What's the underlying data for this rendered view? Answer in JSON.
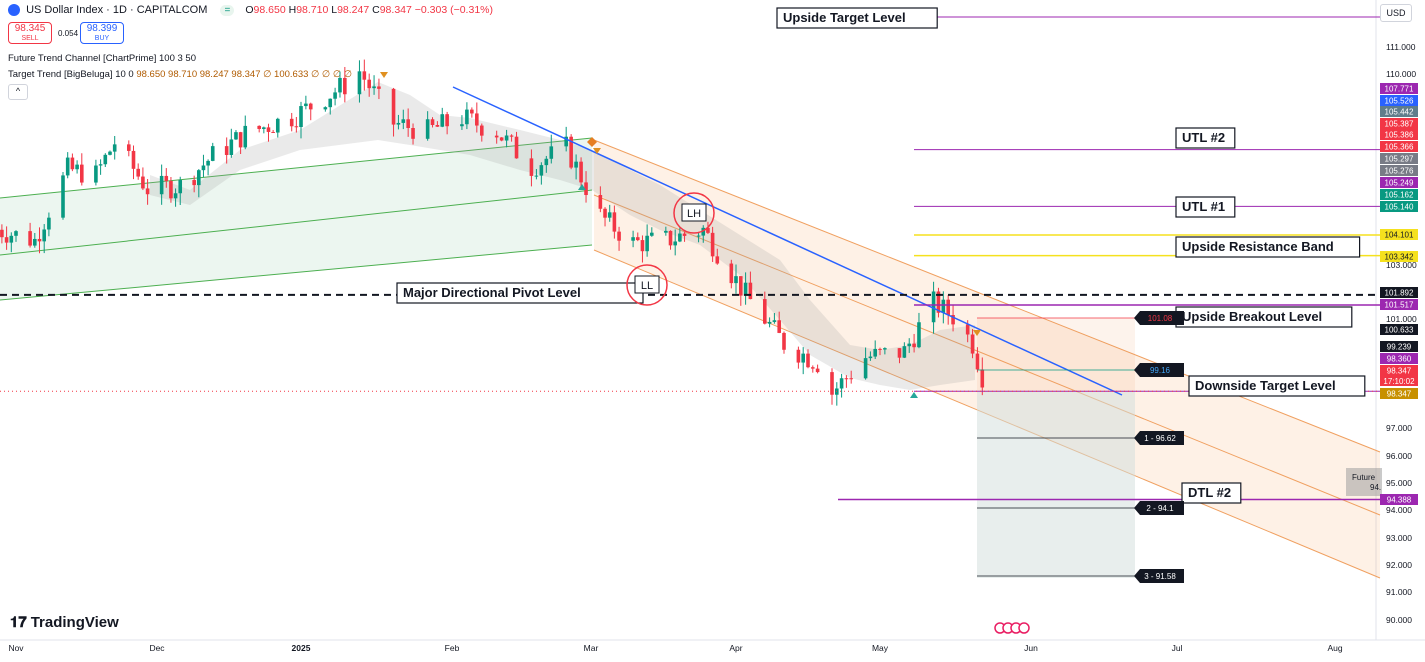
{
  "header": {
    "symbol_title": "US Dollar Index · 1D · CAPITALCOM",
    "change_pill": "= ",
    "ohlc": {
      "o_label": "O",
      "o": "98.650",
      "h_label": "H",
      "h": "98.710",
      "l_label": "L",
      "l": "98.247",
      "c_label": "C",
      "c": "98.347",
      "chg": "−0.303 (−0.31%)"
    },
    "sell_price": "98.345",
    "sell_label": "SELL",
    "buy_price": "98.399",
    "buy_label": "BUY",
    "spread": "0.054",
    "indicator_1": "Future Trend Channel [ChartPrime] 100 3 50",
    "indicator_2_name": "Target Trend [BigBeluga] 10 0",
    "indicator_2_values": "98.650  98.710  98.247  98.347  ∅  100.633  ∅  ∅  ∅  ∅",
    "collapse_icon": "^",
    "currency": "USD",
    "logo_text": "TradingView"
  },
  "colors": {
    "up": "#089981",
    "down": "#f23645",
    "channel": "#f0a060",
    "trend": "#2962ff",
    "level": "#9c27b0",
    "yellow": "#f5e11e"
  },
  "chart_data": {
    "type": "candlestick",
    "symbol": "US Dollar Index",
    "timeframe": "1D",
    "x_tick_labels": [
      "Nov",
      "Dec",
      "2025",
      "Feb",
      "Mar",
      "Apr",
      "May",
      "Jun",
      "Jul",
      "Aug"
    ],
    "y_tick_labels": [
      "111.000",
      "110.000",
      "103.000",
      "101.000",
      "97.000",
      "96.000",
      "95.000",
      "94.000",
      "93.000",
      "92.000",
      "91.000",
      "90.000"
    ],
    "ylim": [
      89.6,
      112.0
    ],
    "last_price": 98.347,
    "countdown": "17:10:02",
    "close_path": [
      [
        "2024-10-28",
        104.3
      ],
      [
        "2024-11-05",
        103.9
      ],
      [
        "2024-11-12",
        106.5
      ],
      [
        "2024-11-18",
        106.3
      ],
      [
        "2024-11-22",
        107.5
      ],
      [
        "2024-11-29",
        105.8
      ],
      [
        "2024-12-06",
        105.9
      ],
      [
        "2024-12-13",
        107.0
      ],
      [
        "2024-12-20",
        107.8
      ],
      [
        "2024-12-31",
        108.5
      ],
      [
        "2025-01-10",
        109.6
      ],
      [
        "2025-01-13",
        110.1
      ],
      [
        "2025-01-20",
        108.2
      ],
      [
        "2025-01-27",
        107.9
      ],
      [
        "2025-02-03",
        108.4
      ],
      [
        "2025-02-10",
        107.9
      ],
      [
        "2025-02-17",
        106.6
      ],
      [
        "2025-02-24",
        107.3
      ],
      [
        "2025-03-03",
        104.8
      ],
      [
        "2025-03-10",
        103.8
      ],
      [
        "2025-03-17",
        103.9
      ],
      [
        "2025-03-25",
        104.3
      ],
      [
        "2025-04-03",
        101.9
      ],
      [
        "2025-04-11",
        100.1
      ],
      [
        "2025-04-18",
        99.4
      ],
      [
        "2025-04-21",
        98.3
      ],
      [
        "2025-04-28",
        99.6
      ],
      [
        "2025-05-06",
        99.8
      ],
      [
        "2025-05-12",
        101.6
      ],
      [
        "2025-05-16",
        101.1
      ],
      [
        "2025-05-20",
        100.1
      ],
      [
        "2025-05-23",
        98.35
      ]
    ],
    "levels": [
      {
        "label": "Upside Target Level",
        "value": 112.2
      },
      {
        "label": "UTL #2",
        "value": 107.23
      },
      {
        "label": "UTL #1",
        "value": 105.15
      },
      {
        "label": "Upside Resistance Band",
        "upper": 104.101,
        "lower": 103.342
      },
      {
        "label": "Major Directional Pivot  Level",
        "value": 101.892
      },
      {
        "label": "Upside Breakout Level",
        "value": 101.517
      },
      {
        "label": "Downside Target Level",
        "value": 98.347
      },
      {
        "label": "DTL #2",
        "value": 94.388
      }
    ],
    "right_axis_badges": [
      "107.771",
      "105.526",
      "105.442",
      "105.387",
      "105.386",
      "105.366",
      "105.297",
      "105.276",
      "105.249",
      "105.162",
      "105.140",
      "104.101",
      "103.342",
      "101.892",
      "101.517",
      "100.633",
      "99.239",
      "98.360",
      "98.347",
      "98.347",
      "94.388"
    ],
    "projection_labels": [
      "101.08",
      "99.16",
      "1 - 96.62",
      "2 - 94.1",
      "3 - 91.58",
      "Future",
      "94."
    ],
    "pattern_labels": [
      "LH",
      "LL"
    ]
  }
}
